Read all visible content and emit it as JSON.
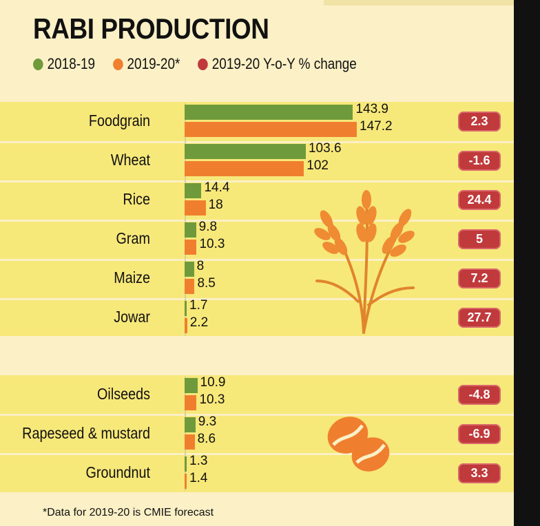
{
  "title": "RABI PRODUCTION",
  "legend": {
    "s1": "2018-19",
    "s2": "2019-20*",
    "s3": "2019-20  Y-o-Y % change"
  },
  "colors": {
    "green": "#6f9a3b",
    "orange": "#ef7f2e",
    "red": "#c0393b",
    "band": "#f7e87a",
    "background": "#fbf0c6"
  },
  "footnote": "*Data for 2019-20 is CMIE forecast",
  "chart_data": {
    "type": "bar",
    "orientation": "horizontal",
    "title": "RABI PRODUCTION",
    "categories": [
      "Foodgrain",
      "Wheat",
      "Rice",
      "Gram",
      "Maize",
      "Jowar",
      "Oilseeds",
      "Rapeseed & mustard",
      "Groundnut"
    ],
    "groups": [
      {
        "name": "foodgrains",
        "categories": [
          "Foodgrain",
          "Wheat",
          "Rice",
          "Gram",
          "Maize",
          "Jowar"
        ]
      },
      {
        "name": "oilseeds",
        "categories": [
          "Oilseeds",
          "Rapeseed & mustard",
          "Groundnut"
        ]
      }
    ],
    "series": [
      {
        "name": "2018-19",
        "color": "#6f9a3b",
        "values": [
          143.9,
          103.6,
          14.4,
          9.8,
          8,
          1.7,
          10.9,
          9.3,
          1.3
        ],
        "labels": [
          "143.9",
          "103.6",
          "14.4",
          "9.8",
          "8",
          "1.7",
          "10.9",
          "9.3",
          "1.3"
        ]
      },
      {
        "name": "2019-20*",
        "color": "#ef7f2e",
        "values": [
          147.2,
          102,
          18,
          10.3,
          8.5,
          2.2,
          10.3,
          8.6,
          1.4
        ],
        "labels": [
          "147.2",
          "102",
          "18",
          "10.3",
          "8.5",
          "2.2",
          "10.3",
          "8.6",
          "1.4"
        ]
      }
    ],
    "yoy_change": {
      "name": "2019-20  Y-o-Y % change",
      "color": "#c0393b",
      "values": [
        2.3,
        -1.6,
        24.4,
        5,
        7.2,
        27.7,
        -4.8,
        -6.9,
        3.3
      ],
      "labels": [
        "2.3",
        "-1.6",
        "24.4",
        "5",
        "7.2",
        "27.7",
        "-4.8",
        "-6.9",
        "3.3"
      ]
    },
    "xlim": [
      0,
      150
    ]
  }
}
